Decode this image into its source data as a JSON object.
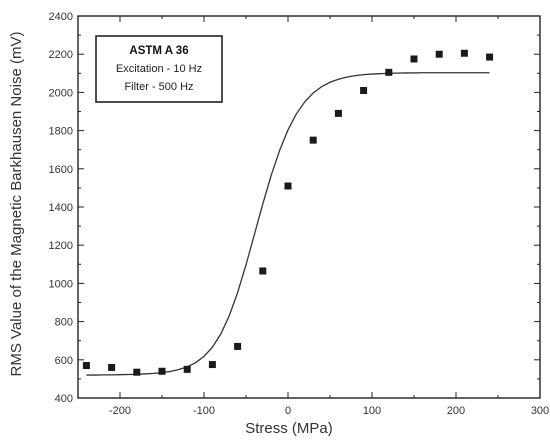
{
  "chart_data": {
    "type": "scatter",
    "title": "",
    "xlabel": "Stress (MPa)",
    "ylabel": "RMS Value of the Magnetic Barkhausen Noise (mV)",
    "xlim": [
      -250,
      300
    ],
    "ylim": [
      400,
      2400
    ],
    "x_ticks": [
      -200,
      -100,
      0,
      100,
      200,
      300
    ],
    "y_ticks": [
      400,
      600,
      800,
      1000,
      1200,
      1400,
      1600,
      1800,
      2000,
      2200,
      2400
    ],
    "x_tick_labels": [
      "-200",
      "-100",
      "0",
      "100",
      "200",
      "300"
    ],
    "y_tick_labels": [
      "400",
      "600",
      "800",
      "1000",
      "1200",
      "1400",
      "1600",
      "1800",
      "2000",
      "2200",
      "2400"
    ],
    "grid": false,
    "legend_position": "top-left",
    "legend": {
      "title": "ASTM A 36",
      "lines": [
        "Excitation - 10 Hz",
        "Filter - 500 Hz"
      ]
    },
    "series": [
      {
        "kind": "markers",
        "marker": "square",
        "x": [
          -240,
          -210,
          -180,
          -150,
          -120,
          -90,
          -60,
          -30,
          0,
          30,
          60,
          90,
          120,
          150,
          180,
          210,
          240
        ],
        "y": [
          570,
          560,
          535,
          540,
          550,
          575,
          670,
          1065,
          1510,
          1750,
          1890,
          2010,
          2105,
          2175,
          2200,
          2205,
          2185
        ]
      },
      {
        "kind": "fit-line",
        "x": [
          -240,
          -230,
          -220,
          -210,
          -200,
          -190,
          -180,
          -170,
          -160,
          -150,
          -140,
          -130,
          -120,
          -110,
          -100,
          -90,
          -80,
          -70,
          -60,
          -50,
          -40,
          -30,
          -20,
          -10,
          0,
          10,
          20,
          30,
          40,
          50,
          60,
          70,
          80,
          90,
          100,
          110,
          120,
          130,
          140,
          150,
          160,
          170,
          180,
          190,
          200,
          210,
          220,
          230,
          240
        ],
        "y": [
          520,
          520,
          521,
          521,
          522,
          523,
          524,
          526,
          529,
          533,
          539,
          549,
          563,
          585,
          618,
          666,
          735,
          830,
          952,
          1097,
          1256,
          1416,
          1566,
          1696,
          1804,
          1888,
          1951,
          1997,
          2030,
          2053,
          2069,
          2080,
          2088,
          2093,
          2096,
          2098,
          2100,
          2101,
          2102,
          2102,
          2103,
          2103,
          2103,
          2103,
          2103,
          2103,
          2103,
          2103,
          2103
        ]
      }
    ]
  }
}
